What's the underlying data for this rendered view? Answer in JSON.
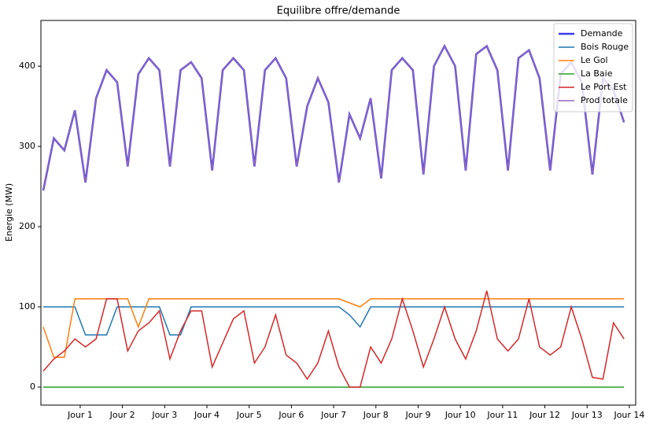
{
  "chart_data": {
    "type": "line",
    "title": "Equilibre offre/demande",
    "y_label": "Energie (MW)",
    "x": [
      0.125,
      0.375,
      0.625,
      0.875,
      1.125,
      1.375,
      1.625,
      1.875,
      2.125,
      2.375,
      2.625,
      2.875,
      3.125,
      3.375,
      3.625,
      3.875,
      4.125,
      4.375,
      4.625,
      4.875,
      5.125,
      5.375,
      5.625,
      5.875,
      6.125,
      6.375,
      6.625,
      6.875,
      7.125,
      7.375,
      7.625,
      7.875,
      8.125,
      8.375,
      8.625,
      8.875,
      9.125,
      9.375,
      9.625,
      9.875,
      10.125,
      10.375,
      10.625,
      10.875,
      11.125,
      11.375,
      11.625,
      11.875,
      12.125,
      12.375,
      12.625,
      12.875,
      13.125,
      13.375,
      13.625,
      13.875
    ],
    "xlim": [
      0.07,
      14.15
    ],
    "xticks": [
      {
        "value": 1,
        "label": "Jour 1"
      },
      {
        "value": 2,
        "label": "Jour 2"
      },
      {
        "value": 3,
        "label": "Jour 3"
      },
      {
        "value": 4,
        "label": "Jour 4"
      },
      {
        "value": 5,
        "label": "Jour 5"
      },
      {
        "value": 6,
        "label": "Jour 6"
      },
      {
        "value": 7,
        "label": "Jour 7"
      },
      {
        "value": 8,
        "label": "Jour 8"
      },
      {
        "value": 9,
        "label": "Jour 9"
      },
      {
        "value": 10,
        "label": "Jour 10"
      },
      {
        "value": 11,
        "label": "Jour 11"
      },
      {
        "value": 12,
        "label": "Jour 12"
      },
      {
        "value": 13,
        "label": "Jour 13"
      },
      {
        "value": 14,
        "label": "Jour 14"
      }
    ],
    "ylim": [
      -22.5,
      457
    ],
    "yticks": [
      0,
      100,
      200,
      300,
      400
    ],
    "legend": "upper right",
    "series": [
      {
        "name": "Demande",
        "color": "#3b3be8",
        "values": [
          245,
          310,
          295,
          345,
          255,
          360,
          395,
          380,
          275,
          390,
          410,
          395,
          275,
          395,
          405,
          385,
          270,
          395,
          410,
          395,
          275,
          395,
          410,
          385,
          275,
          350,
          385,
          355,
          255,
          340,
          310,
          360,
          260,
          395,
          410,
          395,
          265,
          400,
          425,
          400,
          270,
          415,
          425,
          395,
          270,
          410,
          420,
          385,
          270,
          390,
          405,
          380,
          265,
          385,
          370,
          330
        ]
      },
      {
        "name": "Bois Rouge",
        "color": "#1f77b4",
        "values": [
          100,
          100,
          100,
          100,
          65,
          65,
          65,
          100,
          100,
          100,
          100,
          100,
          65,
          65,
          100,
          100,
          100,
          100,
          100,
          100,
          100,
          100,
          100,
          100,
          100,
          100,
          100,
          100,
          100,
          90,
          75,
          100,
          100,
          100,
          100,
          100,
          100,
          100,
          100,
          100,
          100,
          100,
          100,
          100,
          100,
          100,
          100,
          100,
          100,
          100,
          100,
          100,
          100,
          100,
          100,
          100
        ]
      },
      {
        "name": "Le Gol",
        "color": "#ff7f0e",
        "values": [
          75,
          37,
          37,
          110,
          110,
          110,
          110,
          110,
          110,
          75,
          110,
          110,
          110,
          110,
          110,
          110,
          110,
          110,
          110,
          110,
          110,
          110,
          110,
          110,
          110,
          110,
          110,
          110,
          110,
          105,
          100,
          110,
          110,
          110,
          110,
          110,
          110,
          110,
          110,
          110,
          110,
          110,
          110,
          110,
          110,
          110,
          110,
          110,
          110,
          110,
          110,
          110,
          110,
          110,
          110,
          110
        ]
      },
      {
        "name": "La Baie",
        "color": "#2ca02c",
        "values": [
          0,
          0,
          0,
          0,
          0,
          0,
          0,
          0,
          0,
          0,
          0,
          0,
          0,
          0,
          0,
          0,
          0,
          0,
          0,
          0,
          0,
          0,
          0,
          0,
          0,
          0,
          0,
          0,
          0,
          0,
          0,
          0,
          0,
          0,
          0,
          0,
          0,
          0,
          0,
          0,
          0,
          0,
          0,
          0,
          0,
          0,
          0,
          0,
          0,
          0,
          0,
          0,
          0,
          0,
          0,
          0
        ]
      },
      {
        "name": "Le Port Est",
        "color": "#d62728",
        "values": [
          20,
          35,
          45,
          60,
          50,
          60,
          110,
          110,
          45,
          70,
          80,
          95,
          35,
          70,
          95,
          95,
          25,
          55,
          85,
          95,
          30,
          50,
          90,
          40,
          30,
          10,
          30,
          70,
          25,
          0,
          0,
          50,
          30,
          60,
          110,
          70,
          25,
          60,
          100,
          60,
          35,
          70,
          120,
          60,
          45,
          60,
          110,
          50,
          40,
          50,
          100,
          60,
          12,
          10,
          80,
          60
        ]
      },
      {
        "name": "Prod totale",
        "color": "#9467bd",
        "values": [
          245,
          310,
          295,
          345,
          255,
          360,
          395,
          380,
          275,
          390,
          410,
          395,
          275,
          395,
          405,
          385,
          270,
          395,
          410,
          395,
          275,
          395,
          410,
          385,
          275,
          350,
          385,
          355,
          255,
          340,
          310,
          360,
          260,
          395,
          410,
          395,
          265,
          400,
          425,
          400,
          270,
          415,
          425,
          395,
          270,
          410,
          420,
          385,
          270,
          390,
          405,
          380,
          265,
          385,
          370,
          330
        ]
      }
    ]
  }
}
